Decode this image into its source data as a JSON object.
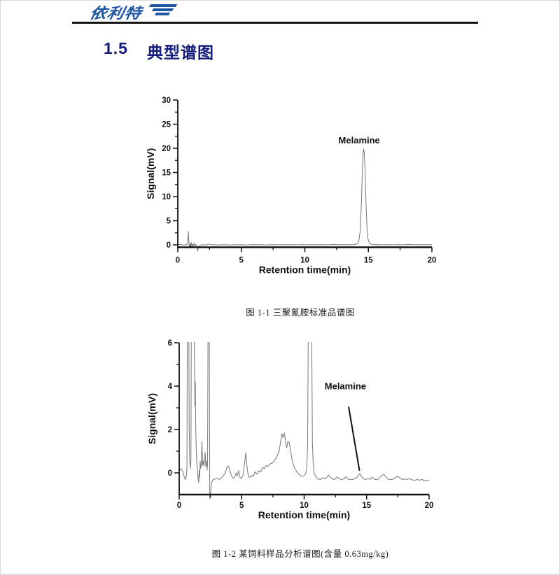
{
  "page": {
    "background": "#ffffff",
    "border_color": "#d9d9d9"
  },
  "header": {
    "logo_text": "依利特",
    "logo_mark": "triple-bar-flag",
    "brand_color": "#1d55a5",
    "rule_color": "#161616"
  },
  "section": {
    "number": "1.5",
    "title": "典型谱图",
    "color": "#131c7b"
  },
  "figures": [
    {
      "caption": "图 1-1  三聚氰胺标准品谱图"
    },
    {
      "caption": "图 1-2  某饲料样品分析谱图(含量 0.63mg/kg)"
    }
  ],
  "chart_data": [
    {
      "type": "line",
      "title": "",
      "xlabel": "Retention time(min)",
      "ylabel": "Signal(mV)",
      "xlim": [
        0,
        20
      ],
      "ylim": [
        -0.5,
        30
      ],
      "xticks": [
        0,
        5,
        10,
        15,
        20
      ],
      "yticks": [
        0,
        5,
        10,
        15,
        20,
        25,
        30
      ],
      "x_minor_ticks": [
        2.5,
        7.5,
        12.5,
        17.5
      ],
      "y_minor_ticks": [
        2.5,
        7.5,
        12.5,
        17.5,
        22.5,
        27.5
      ],
      "grid": false,
      "legend": "none",
      "line_color": "#777777",
      "axis_color": "#111111",
      "annotations": [
        {
          "text": "Melamine",
          "x": 14.28,
          "y": 21.0
        }
      ],
      "peaks": [
        {
          "name": "Melamine",
          "retention_min": 14.6,
          "height_mV": 19.9
        }
      ],
      "series": [
        {
          "name": "melamine-standard",
          "points": [
            [
              0,
              0.05
            ],
            [
              0.2,
              0.1
            ],
            [
              0.35,
              0
            ],
            [
              0.5,
              -0.05
            ],
            [
              0.62,
              0.05
            ],
            [
              0.72,
              0.1
            ],
            [
              0.78,
              0.25
            ],
            [
              0.83,
              2.8
            ],
            [
              0.86,
              1.2
            ],
            [
              0.9,
              -0.15
            ],
            [
              0.93,
              -0.7
            ],
            [
              0.97,
              0.25
            ],
            [
              1.0,
              -0.5
            ],
            [
              1.05,
              0.5
            ],
            [
              1.1,
              -0.35
            ],
            [
              1.15,
              0.2
            ],
            [
              1.2,
              -0.45
            ],
            [
              1.28,
              0.3
            ],
            [
              1.34,
              -0.25
            ],
            [
              1.42,
              0.15
            ],
            [
              1.5,
              -0.35
            ],
            [
              1.56,
              -1.3
            ],
            [
              1.62,
              -0.5
            ],
            [
              1.7,
              -0.2
            ],
            [
              1.8,
              -0.05
            ],
            [
              1.95,
              0.05
            ],
            [
              2.1,
              -0.03
            ],
            [
              2.3,
              0.02
            ],
            [
              2.45,
              0.18
            ],
            [
              2.56,
              0.08
            ],
            [
              2.7,
              0.02
            ],
            [
              2.9,
              0.05
            ],
            [
              3.1,
              -0.03
            ],
            [
              3.35,
              0.04
            ],
            [
              3.6,
              0
            ],
            [
              3.9,
              0.05
            ],
            [
              4.2,
              -0.04
            ],
            [
              4.5,
              0.04
            ],
            [
              4.8,
              0
            ],
            [
              5.1,
              0.05
            ],
            [
              5.4,
              -0.03
            ],
            [
              5.7,
              0.02
            ],
            [
              6,
              0.05
            ],
            [
              6.3,
              0
            ],
            [
              6.6,
              0.04
            ],
            [
              6.9,
              -0.03
            ],
            [
              7.2,
              0.02
            ],
            [
              7.5,
              0.05
            ],
            [
              7.8,
              0
            ],
            [
              8.2,
              0.04
            ],
            [
              8.6,
              0
            ],
            [
              9,
              0.05
            ],
            [
              9.4,
              0
            ],
            [
              9.8,
              0.04
            ],
            [
              10.2,
              0
            ],
            [
              10.6,
              0.05
            ],
            [
              11,
              0.01
            ],
            [
              11.4,
              0.05
            ],
            [
              11.8,
              0
            ],
            [
              12.2,
              0.08
            ],
            [
              12.6,
              0.02
            ],
            [
              13,
              0.05
            ],
            [
              13.4,
              0.02
            ],
            [
              13.7,
              0.05
            ],
            [
              14,
              0.08
            ],
            [
              14.15,
              0.25
            ],
            [
              14.25,
              0.8
            ],
            [
              14.35,
              2.8
            ],
            [
              14.45,
              8.5
            ],
            [
              14.52,
              15
            ],
            [
              14.58,
              18.8
            ],
            [
              14.63,
              19.9
            ],
            [
              14.68,
              18.9
            ],
            [
              14.74,
              15.5
            ],
            [
              14.81,
              9
            ],
            [
              14.88,
              4
            ],
            [
              14.96,
              1.4
            ],
            [
              15.05,
              0.5
            ],
            [
              15.15,
              0.2
            ],
            [
              15.3,
              0.08
            ],
            [
              15.5,
              0.02
            ],
            [
              15.8,
              0.05
            ],
            [
              16.1,
              0
            ],
            [
              16.5,
              0.04
            ],
            [
              16.9,
              0
            ],
            [
              17.3,
              0.05
            ],
            [
              17.7,
              0.01
            ],
            [
              18.1,
              0.08
            ],
            [
              18.5,
              0.03
            ],
            [
              18.9,
              0.05
            ],
            [
              19.3,
              0.02
            ],
            [
              19.7,
              0.04
            ],
            [
              20,
              0.02
            ]
          ]
        }
      ]
    },
    {
      "type": "line",
      "title": "",
      "xlabel": "Retention time(min)",
      "ylabel": "Signal(mV)",
      "xlim": [
        0,
        20
      ],
      "ylim": [
        -1,
        6
      ],
      "xticks": [
        0,
        5,
        10,
        15,
        20
      ],
      "yticks": [
        0,
        2,
        4,
        6
      ],
      "x_minor_ticks": [
        2.5,
        7.5,
        12.5,
        17.5
      ],
      "y_minor_ticks": [
        1,
        3,
        5
      ],
      "grid": false,
      "legend": "none",
      "line_color": "#777777",
      "axis_color": "#111111",
      "annotations": [
        {
          "text": "Melamine",
          "x": 13.3,
          "y": 3.85,
          "pointer": {
            "x1": 13.56,
            "y1": 3.05,
            "x2": 14.43,
            "y2": 0.1
          }
        }
      ],
      "peaks": [
        {
          "name": "Melamine",
          "retention_min": 14.45
        },
        {
          "name": "matrix-peak-offscale",
          "retention_min": 10.5
        }
      ],
      "series": [
        {
          "name": "feed-sample",
          "points": [
            [
              0,
              0.1
            ],
            [
              0.15,
              0.18
            ],
            [
              0.3,
              0.05
            ],
            [
              0.42,
              -0.2
            ],
            [
              0.5,
              -0.32
            ],
            [
              0.58,
              -0.12
            ],
            [
              0.62,
              0.3
            ],
            [
              0.65,
              6.8
            ],
            [
              0.77,
              6.8
            ],
            [
              0.8,
              2.2
            ],
            [
              0.84,
              0.55
            ],
            [
              0.89,
              0.2
            ],
            [
              0.94,
              0.6
            ],
            [
              0.97,
              6.8
            ],
            [
              1.19,
              6.8
            ],
            [
              1.23,
              4.5
            ],
            [
              1.26,
              3.1
            ],
            [
              1.29,
              4.2
            ],
            [
              1.33,
              2.0
            ],
            [
              1.36,
              1.1
            ],
            [
              1.41,
              0.45
            ],
            [
              1.46,
              0.1
            ],
            [
              1.51,
              -0.25
            ],
            [
              1.56,
              -0.45
            ],
            [
              1.6,
              0.12
            ],
            [
              1.64,
              -0.2
            ],
            [
              1.68,
              0.55
            ],
            [
              1.73,
              0.2
            ],
            [
              1.78,
              0.5
            ],
            [
              1.82,
              1.45
            ],
            [
              1.87,
              0.35
            ],
            [
              1.93,
              0.55
            ],
            [
              1.98,
              0.3
            ],
            [
              2.03,
              0.6
            ],
            [
              2.08,
              0.95
            ],
            [
              2.13,
              0.32
            ],
            [
              2.18,
              0.55
            ],
            [
              2.23,
              0.12
            ],
            [
              2.27,
              0.4
            ],
            [
              2.31,
              6.8
            ],
            [
              2.41,
              6.8
            ],
            [
              2.45,
              -1.4
            ],
            [
              2.52,
              -0.85
            ],
            [
              2.58,
              -0.5
            ],
            [
              2.66,
              -0.35
            ],
            [
              2.8,
              -0.3
            ],
            [
              3.0,
              -0.25
            ],
            [
              3.2,
              -0.3
            ],
            [
              3.4,
              -0.22
            ],
            [
              3.55,
              -0.12
            ],
            [
              3.7,
              0.02
            ],
            [
              3.85,
              0.3
            ],
            [
              3.95,
              0.32
            ],
            [
              4.05,
              0.1
            ],
            [
              4.18,
              -0.12
            ],
            [
              4.3,
              -0.25
            ],
            [
              4.45,
              -0.2
            ],
            [
              4.55,
              0.0
            ],
            [
              4.65,
              -0.15
            ],
            [
              4.75,
              0.1
            ],
            [
              4.85,
              -0.2
            ],
            [
              4.97,
              -0.26
            ],
            [
              5.1,
              -0.12
            ],
            [
              5.25,
              0.5
            ],
            [
              5.33,
              0.92
            ],
            [
              5.42,
              0.35
            ],
            [
              5.52,
              -0.1
            ],
            [
              5.62,
              -0.22
            ],
            [
              5.78,
              -0.12
            ],
            [
              5.92,
              -0.16
            ],
            [
              6.08,
              0.05
            ],
            [
              6.22,
              -0.06
            ],
            [
              6.38,
              0.1
            ],
            [
              6.52,
              0.04
            ],
            [
              6.68,
              0.25
            ],
            [
              6.82,
              0.2
            ],
            [
              6.98,
              0.35
            ],
            [
              7.12,
              0.3
            ],
            [
              7.28,
              0.42
            ],
            [
              7.44,
              0.45
            ],
            [
              7.6,
              0.55
            ],
            [
              7.8,
              0.72
            ],
            [
              8.0,
              1.0
            ],
            [
              8.12,
              1.45
            ],
            [
              8.22,
              1.8
            ],
            [
              8.32,
              1.62
            ],
            [
              8.42,
              1.85
            ],
            [
              8.52,
              1.42
            ],
            [
              8.6,
              1.15
            ],
            [
              8.7,
              1.45
            ],
            [
              8.8,
              1.4
            ],
            [
              8.92,
              1.0
            ],
            [
              9.05,
              0.55
            ],
            [
              9.2,
              0.28
            ],
            [
              9.4,
              0.05
            ],
            [
              9.6,
              -0.08
            ],
            [
              9.8,
              -0.16
            ],
            [
              9.95,
              -0.14
            ],
            [
              10.1,
              -0.05
            ],
            [
              10.2,
              0.15
            ],
            [
              10.28,
              1.2
            ],
            [
              10.33,
              6.8
            ],
            [
              10.6,
              6.8
            ],
            [
              10.66,
              1.4
            ],
            [
              10.73,
              0.35
            ],
            [
              10.82,
              -0.05
            ],
            [
              10.95,
              -0.2
            ],
            [
              11.1,
              -0.28
            ],
            [
              11.3,
              -0.3
            ],
            [
              11.5,
              -0.22
            ],
            [
              11.7,
              -0.28
            ],
            [
              11.85,
              -0.18
            ],
            [
              11.95,
              -0.1
            ],
            [
              12.1,
              -0.2
            ],
            [
              12.3,
              -0.3
            ],
            [
              12.5,
              -0.28
            ],
            [
              12.65,
              -0.18
            ],
            [
              12.8,
              -0.26
            ],
            [
              13.0,
              -0.32
            ],
            [
              13.2,
              -0.26
            ],
            [
              13.35,
              -0.18
            ],
            [
              13.5,
              -0.28
            ],
            [
              13.7,
              -0.32
            ],
            [
              13.9,
              -0.3
            ],
            [
              14.1,
              -0.26
            ],
            [
              14.3,
              -0.16
            ],
            [
              14.45,
              -0.03
            ],
            [
              14.6,
              -0.18
            ],
            [
              14.78,
              -0.28
            ],
            [
              14.95,
              -0.3
            ],
            [
              15.1,
              -0.26
            ],
            [
              15.3,
              -0.3
            ],
            [
              15.45,
              -0.2
            ],
            [
              15.6,
              -0.28
            ],
            [
              15.8,
              -0.32
            ],
            [
              16.0,
              -0.26
            ],
            [
              16.2,
              -0.12
            ],
            [
              16.38,
              -0.07
            ],
            [
              16.55,
              -0.18
            ],
            [
              16.75,
              -0.3
            ],
            [
              16.95,
              -0.32
            ],
            [
              17.15,
              -0.28
            ],
            [
              17.35,
              -0.2
            ],
            [
              17.5,
              -0.16
            ],
            [
              17.65,
              -0.24
            ],
            [
              17.85,
              -0.3
            ],
            [
              18.05,
              -0.28
            ],
            [
              18.25,
              -0.3
            ],
            [
              18.45,
              -0.27
            ],
            [
              18.65,
              -0.32
            ],
            [
              18.85,
              -0.35
            ],
            [
              19.05,
              -0.3
            ],
            [
              19.25,
              -0.34
            ],
            [
              19.45,
              -0.3
            ],
            [
              19.65,
              -0.38
            ],
            [
              19.85,
              -0.34
            ],
            [
              20,
              -0.36
            ]
          ]
        }
      ]
    }
  ]
}
